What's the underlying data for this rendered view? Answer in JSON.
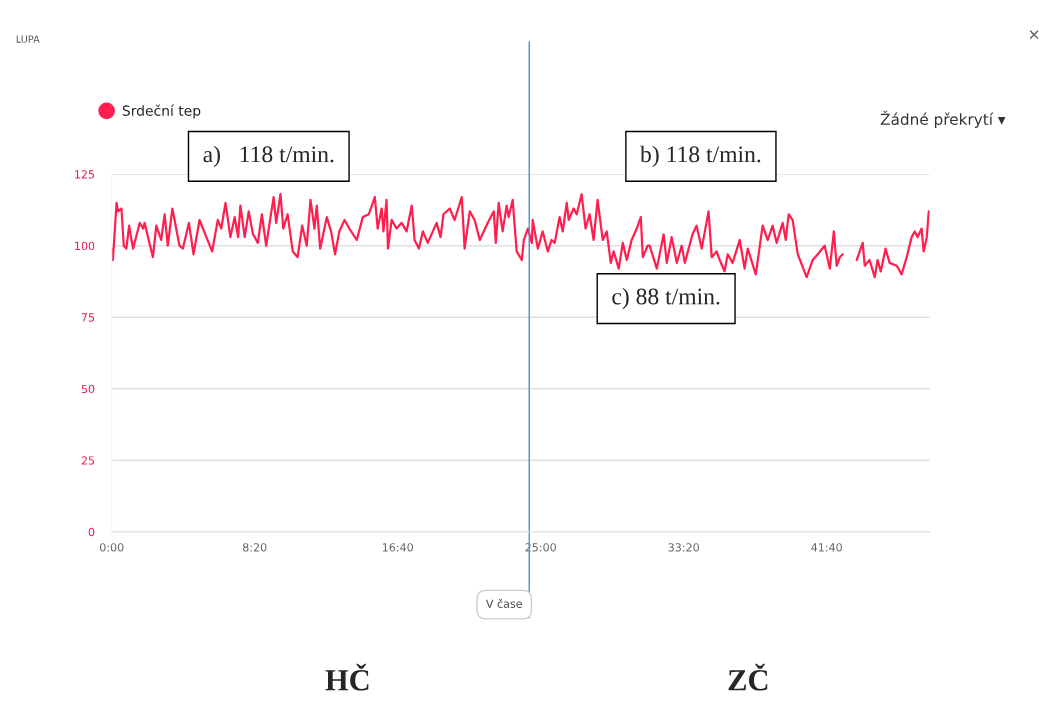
{
  "chart_data": {
    "type": "line",
    "title": "LUPA",
    "x": [
      0,
      4,
      17,
      22,
      34,
      42,
      51,
      61,
      69,
      75,
      98,
      110,
      115,
      127,
      144,
      156,
      173,
      185,
      196,
      212,
      237,
      249,
      270,
      286,
      307,
      331,
      351,
      371,
      383,
      398,
      415,
      430,
      442,
      450,
      465,
      479,
      494,
      511,
      525,
      540,
      566,
      575,
      590,
      600,
      615,
      633,
      650,
      666,
      682,
      695,
      709,
      717,
      729,
      752,
      767,
      781,
      796,
      814,
      831,
      857,
      878,
      899,
      920,
      930,
      944,
      950,
      961,
      966,
      979,
      996,
      1014,
      1031,
      1049,
      1059,
      1074,
      1088,
      1105,
      1136,
      1150,
      1160,
      1182,
      1199,
      1224,
      1234,
      1252,
      1269,
      1287,
      1315,
      1336,
      1343,
      1353,
      1367,
      1381,
      1388,
      1402,
      1416,
      1434,
      1441,
      1455,
      1469,
      1472,
      1490,
      1507,
      1525,
      1538,
      1549,
      1566,
      1577,
      1591,
      1598,
      1615,
      1626,
      1643,
      1657,
      1671,
      1685,
      1699,
      1717,
      1731,
      1745,
      1755,
      1773,
      1787,
      1801,
      1818,
      1836,
      1850,
      1857,
      1874,
      1881,
      1906,
      1930,
      1941,
      1958,
      1976,
      1993,
      2004,
      2031,
      2045,
      2063,
      2087,
      2098,
      2115,
      2126,
      2143,
      2154,
      2171,
      2196,
      2213,
      2224,
      2252,
      2262,
      2276,
      2294,
      2311,
      2325,
      2346,
      2357,
      2367,
      2381,
      2399,
      2430,
      2451,
      2469,
      2493,
      2511,
      2525,
      2535,
      2546,
      2556,
      2580,
      2605,
      2626,
      2633,
      2650,
      2668,
      2678,
      2689,
      2706,
      2720,
      2745,
      2762,
      2780,
      2797,
      2808,
      2818,
      2832,
      2839,
      2850,
      2857
    ],
    "series": [
      {
        "name": "Srdeční tep",
        "color": "#ff1f4f",
        "values": [
          99,
          95,
          115,
          112,
          113,
          100,
          99,
          107,
          102,
          99,
          108,
          106,
          108,
          103,
          96,
          107,
          102,
          111,
          100,
          113,
          100,
          99,
          108,
          97,
          109,
          103,
          98,
          109,
          106,
          115,
          103,
          110,
          103,
          114,
          103,
          112,
          104,
          101,
          111,
          100,
          117,
          108,
          118,
          106,
          111,
          98,
          96,
          107,
          100,
          116,
          106,
          114,
          99,
          110,
          105,
          97,
          105,
          109,
          106,
          102,
          110,
          111,
          117,
          106,
          113,
          105,
          116,
          99,
          109,
          106,
          108,
          105,
          114,
          102,
          99,
          105,
          101,
          108,
          103,
          111,
          113,
          109,
          117,
          99,
          112,
          109,
          102,
          108,
          112,
          101,
          115,
          105,
          114,
          110,
          116,
          98,
          95,
          102,
          106,
          101,
          109,
          99,
          105,
          98,
          102,
          101,
          110,
          105,
          115,
          109,
          113,
          111,
          118,
          106,
          111,
          102,
          116,
          102,
          105,
          94,
          98,
          92,
          101,
          95,
          102,
          106,
          110,
          96,
          100,
          100,
          92,
          104,
          94,
          103,
          94,
          100,
          94,
          104,
          107,
          99,
          112,
          96,
          98,
          95,
          91,
          97,
          94,
          102,
          92,
          99,
          90,
          97,
          107,
          102,
          107,
          101,
          108,
          102,
          111,
          109,
          97,
          89,
          95,
          97,
          100,
          92,
          105,
          93,
          96,
          97,
          null,
          95,
          101,
          93,
          95,
          89,
          95,
          91,
          99,
          94,
          93,
          90,
          96,
          103,
          105,
          103,
          106,
          98,
          103,
          112
        ]
      }
    ],
    "xlim": [
      0,
      2860
    ],
    "ylim": [
      0,
      125
    ],
    "xticks": [
      {
        "value": 0,
        "label": "0:00"
      },
      {
        "value": 500,
        "label": "8:20"
      },
      {
        "value": 1000,
        "label": "16:40"
      },
      {
        "value": 1500,
        "label": "25:00"
      },
      {
        "value": 2000,
        "label": "33:20"
      },
      {
        "value": 2500,
        "label": "41:40"
      }
    ],
    "yticks": [
      0,
      25,
      50,
      75,
      100,
      125
    ],
    "grid": "y",
    "legend": "top left",
    "marker": "none",
    "line_style": "solid",
    "ref_lines": [
      {
        "axis": "x",
        "value": 1460,
        "color": "#4a90d9"
      }
    ],
    "annotations": [
      "Žádné překrytí ▾",
      "×",
      "a)   118 t/min.",
      "b) 118 t/min.",
      "c) 88 t/min.",
      "V čase",
      "HČ",
      "ZČ"
    ]
  }
}
